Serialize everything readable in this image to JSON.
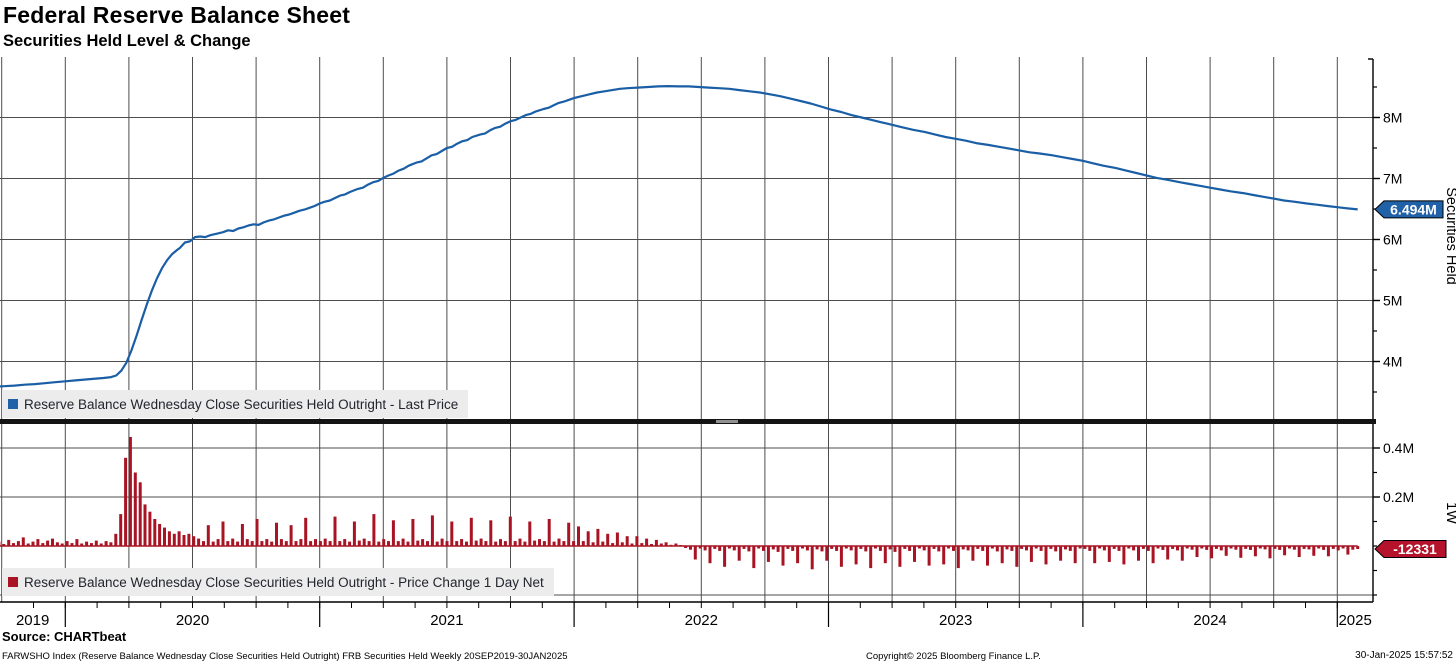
{
  "header": {
    "title": "Federal Reserve Balance Sheet",
    "subtitle": "Securities Held Level & Change"
  },
  "top_panel": {
    "legend": "Reserve Balance Wednesday Close Securities Held Outright - Last Price",
    "axis_title": "Securities Held",
    "last_price_label": "6.494M"
  },
  "bottom_panel": {
    "legend": "Reserve Balance Wednesday Close Securities Held Outright - Price Change 1 Day Net",
    "axis_title": "1W",
    "last_value_label": "-12331"
  },
  "x_axis": {
    "years": [
      "2019",
      "2020",
      "2021",
      "2022",
      "2023",
      "2024",
      "2025"
    ]
  },
  "footer": {
    "source": "Source: CHARTbeat",
    "ticker_desc": "FARWSHO Index (Reserve Balance Wednesday Close Securities Held Outright) FRB Securities Held  Weekly 20SEP2019-30JAN2025",
    "copyright": "Copyright© 2025 Bloomberg Finance L.P.",
    "timestamp": "30-Jan-2025 15:57:52"
  },
  "colors": {
    "line_blue": "#1a5ea6",
    "tag_blue": "#2061a8",
    "bar_red": "#a81423",
    "tag_red": "#b5122c",
    "grid": "#4d4d4d",
    "axis": "#000000",
    "legend_bg": "#ececec",
    "legend_text": "#23252e"
  },
  "chart_data": [
    {
      "type": "line",
      "name": "Reserve Balance Wednesday Close Securities Held Outright - Last Price",
      "x_units": "decimal years (weekly series, 20SEP2019-30JAN2025)",
      "y_units": "M (millions of USD millions)",
      "ylim": [
        3.0,
        9.0
      ],
      "yticks": [
        4,
        5,
        6,
        7,
        8
      ],
      "ytick_labels": [
        "4M",
        "5M",
        "6M",
        "7M",
        "8M"
      ],
      "last_value": 6.494,
      "points": [
        [
          2019.72,
          3.585
        ],
        [
          2019.76,
          3.595
        ],
        [
          2019.8,
          3.605
        ],
        [
          2019.84,
          3.62
        ],
        [
          2019.88,
          3.63
        ],
        [
          2019.92,
          3.645
        ],
        [
          2019.96,
          3.66
        ],
        [
          2020.0,
          3.675
        ],
        [
          2020.04,
          3.69
        ],
        [
          2020.08,
          3.705
        ],
        [
          2020.12,
          3.72
        ],
        [
          2020.15,
          3.73
        ],
        [
          2020.18,
          3.745
        ],
        [
          2020.2,
          3.77
        ],
        [
          2020.22,
          3.85
        ],
        [
          2020.24,
          3.98
        ],
        [
          2020.26,
          4.18
        ],
        [
          2020.28,
          4.42
        ],
        [
          2020.3,
          4.68
        ],
        [
          2020.32,
          4.93
        ],
        [
          2020.34,
          5.16
        ],
        [
          2020.36,
          5.36
        ],
        [
          2020.38,
          5.53
        ],
        [
          2020.4,
          5.66
        ],
        [
          2020.42,
          5.76
        ],
        [
          2020.44,
          5.83
        ],
        [
          2020.45,
          5.86
        ],
        [
          2020.47,
          5.95
        ],
        [
          2020.49,
          5.97
        ],
        [
          2020.51,
          6.04
        ],
        [
          2020.53,
          6.05
        ],
        [
          2020.55,
          6.04
        ],
        [
          2020.57,
          6.07
        ],
        [
          2020.6,
          6.1
        ],
        [
          2020.62,
          6.12
        ],
        [
          2020.64,
          6.15
        ],
        [
          2020.66,
          6.14
        ],
        [
          2020.68,
          6.18
        ],
        [
          2020.7,
          6.2
        ],
        [
          2020.72,
          6.23
        ],
        [
          2020.74,
          6.25
        ],
        [
          2020.76,
          6.24
        ],
        [
          2020.78,
          6.28
        ],
        [
          2020.8,
          6.31
        ],
        [
          2020.82,
          6.33
        ],
        [
          2020.84,
          6.36
        ],
        [
          2020.86,
          6.39
        ],
        [
          2020.88,
          6.41
        ],
        [
          2020.9,
          6.44
        ],
        [
          2020.92,
          6.47
        ],
        [
          2020.94,
          6.49
        ],
        [
          2020.96,
          6.52
        ],
        [
          2020.98,
          6.55
        ],
        [
          2021.0,
          6.59
        ],
        [
          2021.02,
          6.62
        ],
        [
          2021.04,
          6.64
        ],
        [
          2021.06,
          6.68
        ],
        [
          2021.08,
          6.72
        ],
        [
          2021.1,
          6.74
        ],
        [
          2021.12,
          6.78
        ],
        [
          2021.15,
          6.83
        ],
        [
          2021.17,
          6.85
        ],
        [
          2021.19,
          6.9
        ],
        [
          2021.21,
          6.94
        ],
        [
          2021.23,
          6.96
        ],
        [
          2021.25,
          7.01
        ],
        [
          2021.27,
          7.05
        ],
        [
          2021.29,
          7.08
        ],
        [
          2021.31,
          7.13
        ],
        [
          2021.33,
          7.16
        ],
        [
          2021.35,
          7.21
        ],
        [
          2021.38,
          7.26
        ],
        [
          2021.4,
          7.28
        ],
        [
          2021.42,
          7.33
        ],
        [
          2021.44,
          7.38
        ],
        [
          2021.46,
          7.4
        ],
        [
          2021.48,
          7.45
        ],
        [
          2021.5,
          7.5
        ],
        [
          2021.52,
          7.52
        ],
        [
          2021.54,
          7.57
        ],
        [
          2021.56,
          7.61
        ],
        [
          2021.58,
          7.63
        ],
        [
          2021.6,
          7.68
        ],
        [
          2021.63,
          7.72
        ],
        [
          2021.65,
          7.74
        ],
        [
          2021.67,
          7.79
        ],
        [
          2021.69,
          7.83
        ],
        [
          2021.71,
          7.85
        ],
        [
          2021.73,
          7.9
        ],
        [
          2021.75,
          7.94
        ],
        [
          2021.77,
          7.96
        ],
        [
          2021.79,
          8.0
        ],
        [
          2021.81,
          8.04
        ],
        [
          2021.83,
          8.06
        ],
        [
          2021.85,
          8.1
        ],
        [
          2021.88,
          8.14
        ],
        [
          2021.9,
          8.16
        ],
        [
          2021.92,
          8.2
        ],
        [
          2021.94,
          8.24
        ],
        [
          2021.96,
          8.26
        ],
        [
          2021.98,
          8.29
        ],
        [
          2022.0,
          8.32
        ],
        [
          2022.03,
          8.35
        ],
        [
          2022.06,
          8.38
        ],
        [
          2022.09,
          8.41
        ],
        [
          2022.12,
          8.43
        ],
        [
          2022.15,
          8.45
        ],
        [
          2022.18,
          8.47
        ],
        [
          2022.21,
          8.48
        ],
        [
          2022.25,
          8.49
        ],
        [
          2022.29,
          8.5
        ],
        [
          2022.33,
          8.51
        ],
        [
          2022.37,
          8.515
        ],
        [
          2022.41,
          8.51
        ],
        [
          2022.45,
          8.51
        ],
        [
          2022.49,
          8.5
        ],
        [
          2022.53,
          8.49
        ],
        [
          2022.57,
          8.48
        ],
        [
          2022.61,
          8.47
        ],
        [
          2022.65,
          8.45
        ],
        [
          2022.69,
          8.43
        ],
        [
          2022.73,
          8.41
        ],
        [
          2022.77,
          8.38
        ],
        [
          2022.81,
          8.35
        ],
        [
          2022.85,
          8.31
        ],
        [
          2022.89,
          8.27
        ],
        [
          2022.93,
          8.23
        ],
        [
          2022.97,
          8.18
        ],
        [
          2023.01,
          8.13
        ],
        [
          2023.05,
          8.09
        ],
        [
          2023.09,
          8.04
        ],
        [
          2023.13,
          8.0
        ],
        [
          2023.17,
          7.96
        ],
        [
          2023.21,
          7.92
        ],
        [
          2023.25,
          7.88
        ],
        [
          2023.29,
          7.84
        ],
        [
          2023.33,
          7.8
        ],
        [
          2023.38,
          7.76
        ],
        [
          2023.42,
          7.72
        ],
        [
          2023.46,
          7.68
        ],
        [
          2023.5,
          7.65
        ],
        [
          2023.54,
          7.62
        ],
        [
          2023.58,
          7.58
        ],
        [
          2023.63,
          7.55
        ],
        [
          2023.67,
          7.52
        ],
        [
          2023.71,
          7.49
        ],
        [
          2023.75,
          7.46
        ],
        [
          2023.79,
          7.43
        ],
        [
          2023.83,
          7.41
        ],
        [
          2023.88,
          7.38
        ],
        [
          2023.92,
          7.35
        ],
        [
          2023.96,
          7.32
        ],
        [
          2024.0,
          7.29
        ],
        [
          2024.04,
          7.25
        ],
        [
          2024.08,
          7.21
        ],
        [
          2024.13,
          7.17
        ],
        [
          2024.17,
          7.13
        ],
        [
          2024.21,
          7.09
        ],
        [
          2024.25,
          7.05
        ],
        [
          2024.29,
          7.01
        ],
        [
          2024.33,
          6.98
        ],
        [
          2024.38,
          6.94
        ],
        [
          2024.42,
          6.91
        ],
        [
          2024.46,
          6.88
        ],
        [
          2024.5,
          6.85
        ],
        [
          2024.54,
          6.82
        ],
        [
          2024.58,
          6.79
        ],
        [
          2024.63,
          6.76
        ],
        [
          2024.67,
          6.73
        ],
        [
          2024.71,
          6.7
        ],
        [
          2024.75,
          6.67
        ],
        [
          2024.79,
          6.64
        ],
        [
          2024.83,
          6.62
        ],
        [
          2024.88,
          6.59
        ],
        [
          2024.92,
          6.57
        ],
        [
          2024.96,
          6.55
        ],
        [
          2025.0,
          6.53
        ],
        [
          2025.04,
          6.51
        ],
        [
          2025.08,
          6.494
        ]
      ]
    },
    {
      "type": "bar",
      "name": "Reserve Balance Wednesday Close Securities Held Outright - Price Change 1 Day Net",
      "x_units": "decimal years, weekly bars",
      "y_units": "M (millions of USD millions)",
      "start": 2019.72,
      "step": 0.019143,
      "ylim": [
        -0.23,
        0.495
      ],
      "yticks": [
        0.2,
        0.4
      ],
      "ytick_labels": [
        "0.2M",
        "0.4M"
      ],
      "last_value": -12331,
      "values": [
        0.012,
        0.018,
        0.008,
        0.025,
        0.012,
        0.02,
        0.035,
        0.01,
        0.018,
        0.028,
        0.012,
        0.022,
        0.03,
        0.015,
        0.01,
        0.02,
        0.012,
        0.028,
        0.01,
        0.018,
        0.012,
        0.022,
        0.01,
        0.02,
        0.015,
        0.05,
        0.13,
        0.36,
        0.445,
        0.3,
        0.26,
        0.17,
        0.14,
        0.11,
        0.09,
        0.075,
        0.06,
        0.05,
        0.06,
        0.045,
        0.05,
        0.04,
        0.03,
        0.02,
        0.085,
        0.018,
        0.028,
        0.1,
        0.02,
        0.03,
        0.018,
        0.09,
        0.028,
        0.02,
        0.11,
        0.02,
        0.028,
        0.018,
        0.095,
        0.028,
        0.02,
        0.085,
        0.02,
        0.028,
        0.115,
        0.02,
        0.028,
        0.02,
        0.03,
        0.02,
        0.12,
        0.02,
        0.028,
        0.018,
        0.1,
        0.022,
        0.03,
        0.02,
        0.13,
        0.018,
        0.028,
        0.02,
        0.105,
        0.02,
        0.03,
        0.018,
        0.11,
        0.022,
        0.028,
        0.02,
        0.125,
        0.018,
        0.03,
        0.02,
        0.1,
        0.02,
        0.028,
        0.018,
        0.115,
        0.022,
        0.03,
        0.02,
        0.105,
        0.018,
        0.028,
        0.02,
        0.12,
        0.02,
        0.03,
        0.018,
        0.1,
        0.022,
        0.028,
        0.02,
        0.11,
        0.018,
        0.03,
        0.02,
        0.095,
        0.02,
        0.08,
        0.02,
        0.06,
        0.015,
        0.07,
        0.018,
        0.05,
        0.012,
        0.055,
        0.015,
        0.04,
        0.01,
        0.04,
        0.012,
        0.03,
        0.008,
        0.025,
        0.01,
        0.015,
        0.005,
        0.01,
        0.004,
        -0.008,
        -0.015,
        -0.055,
        -0.01,
        -0.018,
        -0.07,
        -0.012,
        -0.02,
        -0.085,
        -0.01,
        -0.018,
        -0.06,
        -0.012,
        -0.022,
        -0.09,
        -0.01,
        -0.02,
        -0.065,
        -0.014,
        -0.024,
        -0.08,
        -0.012,
        -0.02,
        -0.07,
        -0.01,
        -0.018,
        -0.095,
        -0.014,
        -0.022,
        -0.06,
        -0.012,
        -0.02,
        -0.085,
        -0.01,
        -0.018,
        -0.075,
        -0.012,
        -0.022,
        -0.09,
        -0.01,
        -0.02,
        -0.07,
        -0.014,
        -0.024,
        -0.085,
        -0.012,
        -0.02,
        -0.065,
        -0.01,
        -0.018,
        -0.08,
        -0.012,
        -0.022,
        -0.075,
        -0.01,
        -0.02,
        -0.09,
        -0.014,
        -0.018,
        -0.06,
        -0.012,
        -0.02,
        -0.08,
        -0.01,
        -0.022,
        -0.07,
        -0.014,
        -0.02,
        -0.085,
        -0.012,
        -0.018,
        -0.065,
        -0.01,
        -0.02,
        -0.075,
        -0.012,
        -0.022,
        -0.06,
        -0.014,
        -0.02,
        -0.07,
        -0.01,
        -0.012,
        -0.02,
        -0.07,
        -0.01,
        -0.018,
        -0.065,
        -0.012,
        -0.02,
        -0.075,
        -0.01,
        -0.018,
        -0.06,
        -0.012,
        -0.02,
        -0.07,
        -0.01,
        -0.016,
        -0.055,
        -0.012,
        -0.018,
        -0.06,
        -0.01,
        -0.015,
        -0.045,
        -0.01,
        -0.016,
        -0.05,
        -0.012,
        -0.018,
        -0.04,
        -0.01,
        -0.015,
        -0.048,
        -0.012,
        -0.016,
        -0.042,
        -0.01,
        -0.014,
        -0.05,
        -0.012,
        -0.016,
        -0.038,
        -0.01,
        -0.015,
        -0.045,
        -0.012,
        -0.014,
        -0.04,
        -0.01,
        -0.016,
        -0.042,
        -0.012,
        -0.018,
        -0.01,
        -0.035,
        -0.015,
        -0.012331
      ]
    }
  ]
}
